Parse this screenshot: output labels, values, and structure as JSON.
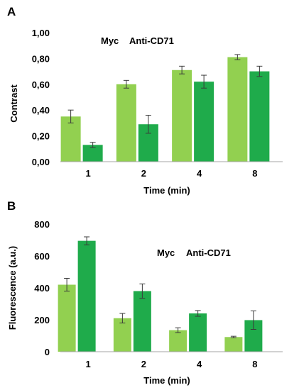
{
  "chart_data": [
    {
      "panel": "A",
      "type": "bar",
      "categories": [
        "1",
        "2",
        "4",
        "8"
      ],
      "series": [
        {
          "name": "Myc",
          "values": [
            0.35,
            0.6,
            0.71,
            0.81
          ],
          "errors": [
            0.05,
            0.03,
            0.03,
            0.02
          ]
        },
        {
          "name": "Anti-CD71",
          "values": [
            0.13,
            0.29,
            0.62,
            0.7
          ],
          "errors": [
            0.02,
            0.07,
            0.05,
            0.04
          ]
        }
      ],
      "xlabel": "Time (min)",
      "ylabel": "Contrast",
      "ylim": [
        0,
        1
      ],
      "yticks": [
        "0,00",
        "0,20",
        "0,40",
        "0,60",
        "0,80",
        "1,00"
      ],
      "ytick_values": [
        0,
        0.2,
        0.4,
        0.6,
        0.8,
        1.0
      ],
      "legend": "top-left",
      "grid": false
    },
    {
      "panel": "B",
      "type": "bar",
      "categories": [
        "1",
        "2",
        "4",
        "8"
      ],
      "series": [
        {
          "name": "Myc",
          "values": [
            420,
            210,
            135,
            92
          ],
          "errors": [
            40,
            30,
            15,
            5
          ]
        },
        {
          "name": "Anti-CD71",
          "values": [
            695,
            380,
            240,
            198
          ],
          "errors": [
            25,
            45,
            18,
            58
          ]
        }
      ],
      "xlabel": "Time (min)",
      "ylabel": "Fluorescence (a.u.)",
      "ylim": [
        0,
        800
      ],
      "yticks": [
        "0",
        "200",
        "400",
        "600",
        "800"
      ],
      "ytick_values": [
        0,
        200,
        400,
        600,
        800
      ],
      "legend": "center-right",
      "grid": false
    }
  ],
  "colors": {
    "myc": "#92d050",
    "cd71": "#1fab4b",
    "axis": "#a6a6a6"
  }
}
